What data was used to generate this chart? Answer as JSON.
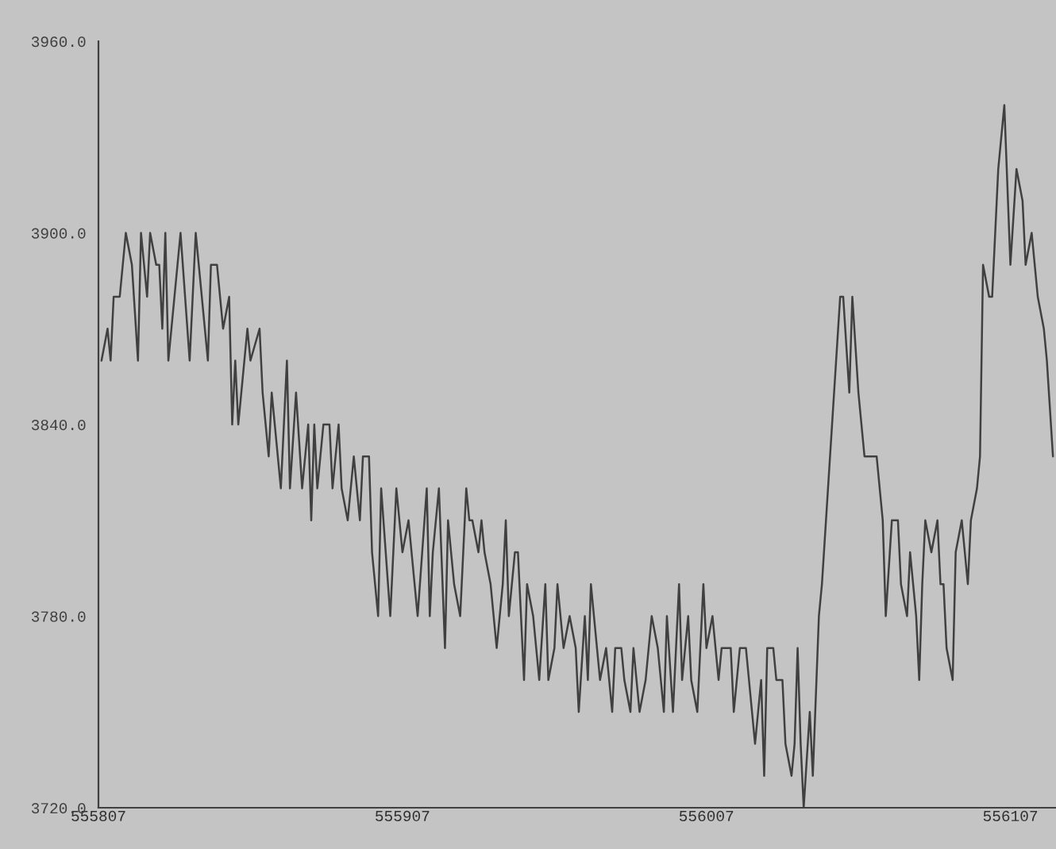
{
  "chart_data": {
    "type": "line",
    "x": [
      555808,
      555810,
      555811,
      555812,
      555814,
      555816,
      555818,
      555820,
      555821,
      555823,
      555824,
      555826,
      555827,
      555828,
      555829,
      555830,
      555832,
      555834,
      555837,
      555839,
      555841,
      555843,
      555844,
      555846,
      555848,
      555850,
      555851,
      555852,
      555853,
      555856,
      555857,
      555860,
      555861,
      555863,
      555864,
      555867,
      555869,
      555870,
      555872,
      555874,
      555876,
      555877,
      555878,
      555879,
      555881,
      555883,
      555884,
      555886,
      555887,
      555889,
      555891,
      555893,
      555894,
      555896,
      555897,
      555899,
      555900,
      555903,
      555905,
      555907,
      555909,
      555911,
      555912,
      555915,
      555916,
      555917,
      555919,
      555921,
      555922,
      555924,
      555926,
      555928,
      555929,
      555930,
      555932,
      555933,
      555934,
      555936,
      555938,
      555940,
      555941,
      555942,
      555944,
      555945,
      555947,
      555948,
      555950,
      555952,
      555954,
      555955,
      555957,
      555958,
      555960,
      555962,
      555964,
      555965,
      555967,
      555968,
      555969,
      555971,
      555972,
      555974,
      555976,
      555977,
      555979,
      555980,
      555982,
      555983,
      555985,
      555987,
      555989,
      555991,
      555993,
      555994,
      555996,
      555998,
      555999,
      556001,
      556002,
      556004,
      556006,
      556007,
      556009,
      556011,
      556012,
      556015,
      556016,
      556018,
      556020,
      556023,
      556025,
      556026,
      556027,
      556029,
      556030,
      556032,
      556033,
      556035,
      556036,
      556037,
      556038,
      556039,
      556041,
      556042,
      556044,
      556045,
      556047,
      556049,
      556051,
      556052,
      556054,
      556055,
      556057,
      556059,
      556063,
      556065,
      556066,
      556068,
      556070,
      556071,
      556073,
      556074,
      556075,
      556076,
      556077,
      556078,
      556079,
      556081,
      556083,
      556084,
      556085,
      556086,
      556088,
      556089,
      556091,
      556093,
      556094,
      556096,
      556097,
      556098,
      556100,
      556101,
      556103,
      556105,
      556107,
      556109,
      556111,
      556112,
      556114,
      556116,
      556118,
      556119,
      556121
    ],
    "series": [
      {
        "color": "#404040",
        "values": [
          3860,
          3870,
          3860,
          3880,
          3880,
          3900,
          3890,
          3860,
          3900,
          3880,
          3900,
          3890,
          3890,
          3870,
          3900,
          3860,
          3880,
          3900,
          3860,
          3900,
          3880,
          3860,
          3890,
          3890,
          3870,
          3880,
          3840,
          3860,
          3840,
          3870,
          3860,
          3870,
          3850,
          3830,
          3850,
          3820,
          3860,
          3820,
          3850,
          3820,
          3840,
          3810,
          3840,
          3820,
          3840,
          3840,
          3820,
          3840,
          3820,
          3810,
          3830,
          3810,
          3830,
          3830,
          3800,
          3780,
          3820,
          3780,
          3820,
          3800,
          3810,
          3790,
          3780,
          3820,
          3780,
          3800,
          3820,
          3770,
          3810,
          3790,
          3780,
          3820,
          3810,
          3810,
          3800,
          3810,
          3800,
          3790,
          3770,
          3790,
          3810,
          3780,
          3800,
          3800,
          3760,
          3790,
          3780,
          3760,
          3790,
          3760,
          3770,
          3790,
          3770,
          3780,
          3770,
          3750,
          3780,
          3760,
          3790,
          3770,
          3760,
          3770,
          3750,
          3770,
          3770,
          3760,
          3750,
          3770,
          3750,
          3760,
          3780,
          3770,
          3750,
          3780,
          3750,
          3790,
          3760,
          3780,
          3760,
          3750,
          3790,
          3770,
          3780,
          3760,
          3770,
          3770,
          3750,
          3770,
          3770,
          3740,
          3760,
          3730,
          3770,
          3770,
          3760,
          3760,
          3740,
          3730,
          3740,
          3770,
          3740,
          3720,
          3750,
          3730,
          3780,
          3790,
          3820,
          3850,
          3880,
          3880,
          3850,
          3880,
          3850,
          3830,
          3830,
          3810,
          3780,
          3810,
          3810,
          3790,
          3780,
          3800,
          3790,
          3780,
          3760,
          3790,
          3810,
          3800,
          3810,
          3790,
          3790,
          3770,
          3760,
          3800,
          3810,
          3790,
          3810,
          3820,
          3830,
          3890,
          3880,
          3880,
          3920,
          3940,
          3890,
          3920,
          3910,
          3890,
          3900,
          3880,
          3870,
          3860,
          3830
        ]
      }
    ],
    "xlim": [
      555807,
      556122
    ],
    "xticks": [
      555807,
      555907,
      556007,
      556107
    ],
    "ylim": [
      3720,
      3960
    ],
    "yticks": [
      {
        "value": 3720,
        "label": "3720.0"
      },
      {
        "value": 3780,
        "label": "3780.0"
      },
      {
        "value": 3840,
        "label": "3840.0"
      },
      {
        "value": 3900,
        "label": "3900.0"
      },
      {
        "value": 3960,
        "label": "3960.0"
      }
    ],
    "grid": false,
    "marker": "none",
    "line_style": "solid"
  }
}
